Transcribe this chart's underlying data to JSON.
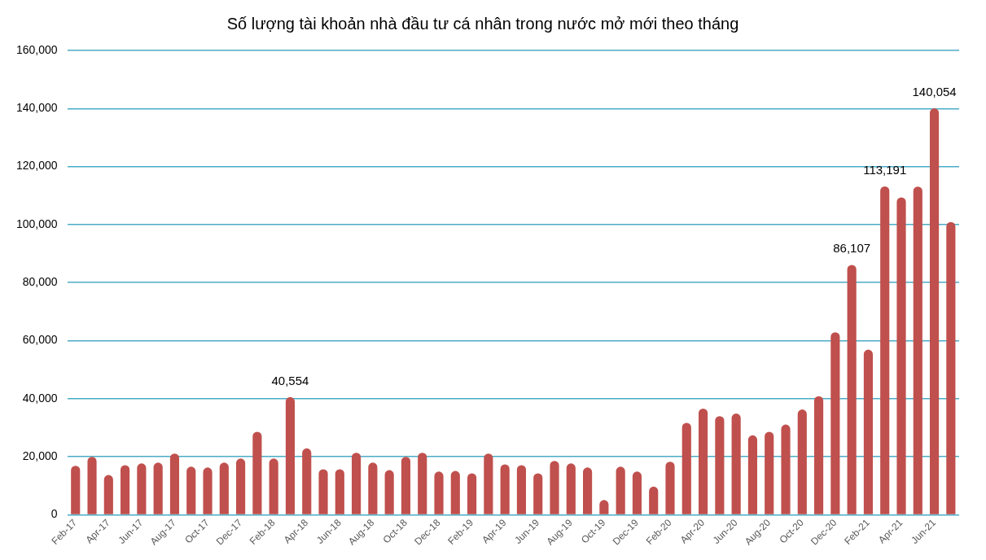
{
  "chart_data": {
    "type": "bar",
    "title": "Số lượng tài khoản nhà đầu tư cá nhân trong nước mở mới theo tháng",
    "categories": [
      "Feb-17",
      null,
      "Apr-17",
      null,
      "Jun-17",
      null,
      "Aug-17",
      null,
      "Oct-17",
      null,
      "Dec-17",
      null,
      "Feb-18",
      null,
      "Apr-18",
      null,
      "Jun-18",
      null,
      "Aug-18",
      null,
      "Oct-18",
      null,
      "Dec-18",
      null,
      "Feb-19",
      null,
      "Apr-19",
      null,
      "Jun-19",
      null,
      "Aug-19",
      null,
      "Oct-19",
      null,
      "Dec-19",
      null,
      "Feb-20",
      null,
      "Apr-20",
      null,
      "Jun-20",
      null,
      "Aug-20",
      null,
      "Oct-20",
      null,
      "Dec-20",
      null,
      "Feb-21",
      null,
      "Apr-21",
      null,
      "Jun-21",
      null
    ],
    "values": [
      16900,
      20000,
      13700,
      17100,
      17700,
      18000,
      21100,
      16600,
      16300,
      18000,
      19400,
      28600,
      19400,
      40554,
      22900,
      15700,
      15700,
      21400,
      18000,
      15400,
      20000,
      21400,
      14900,
      15100,
      14300,
      21100,
      17400,
      17100,
      14300,
      18600,
      17700,
      16300,
      5100,
      16600,
      14900,
      9700,
      18300,
      31700,
      36600,
      34000,
      34900,
      27400,
      28600,
      31100,
      36300,
      40900,
      62900,
      86107,
      56900,
      113191,
      109400,
      113100,
      140054,
      100900
    ],
    "value_labels": [
      null,
      null,
      null,
      null,
      null,
      null,
      null,
      null,
      null,
      null,
      null,
      null,
      null,
      "40,554",
      null,
      null,
      null,
      null,
      null,
      null,
      null,
      null,
      null,
      null,
      null,
      null,
      null,
      null,
      null,
      null,
      null,
      null,
      null,
      null,
      null,
      null,
      null,
      null,
      null,
      null,
      null,
      null,
      null,
      null,
      null,
      null,
      null,
      "86,107",
      null,
      "113,191",
      null,
      null,
      "140,054",
      null
    ],
    "color": "#c0504d",
    "ylim": [
      0,
      160000
    ],
    "yticks": [
      0,
      {
        "value": 20000,
        "label": "20,000"
      },
      {
        "value": 40000,
        "label": "40,000"
      },
      {
        "value": 60000,
        "label": "60,000"
      },
      {
        "value": 80000,
        "label": "80,000"
      },
      {
        "value": 100000,
        "label": "100,000"
      },
      {
        "value": 120000,
        "label": "120,000"
      },
      {
        "value": 140000,
        "label": "140,000"
      },
      {
        "value": 160000,
        "label": "160,000"
      }
    ],
    "grid": "y",
    "legend": false
  }
}
